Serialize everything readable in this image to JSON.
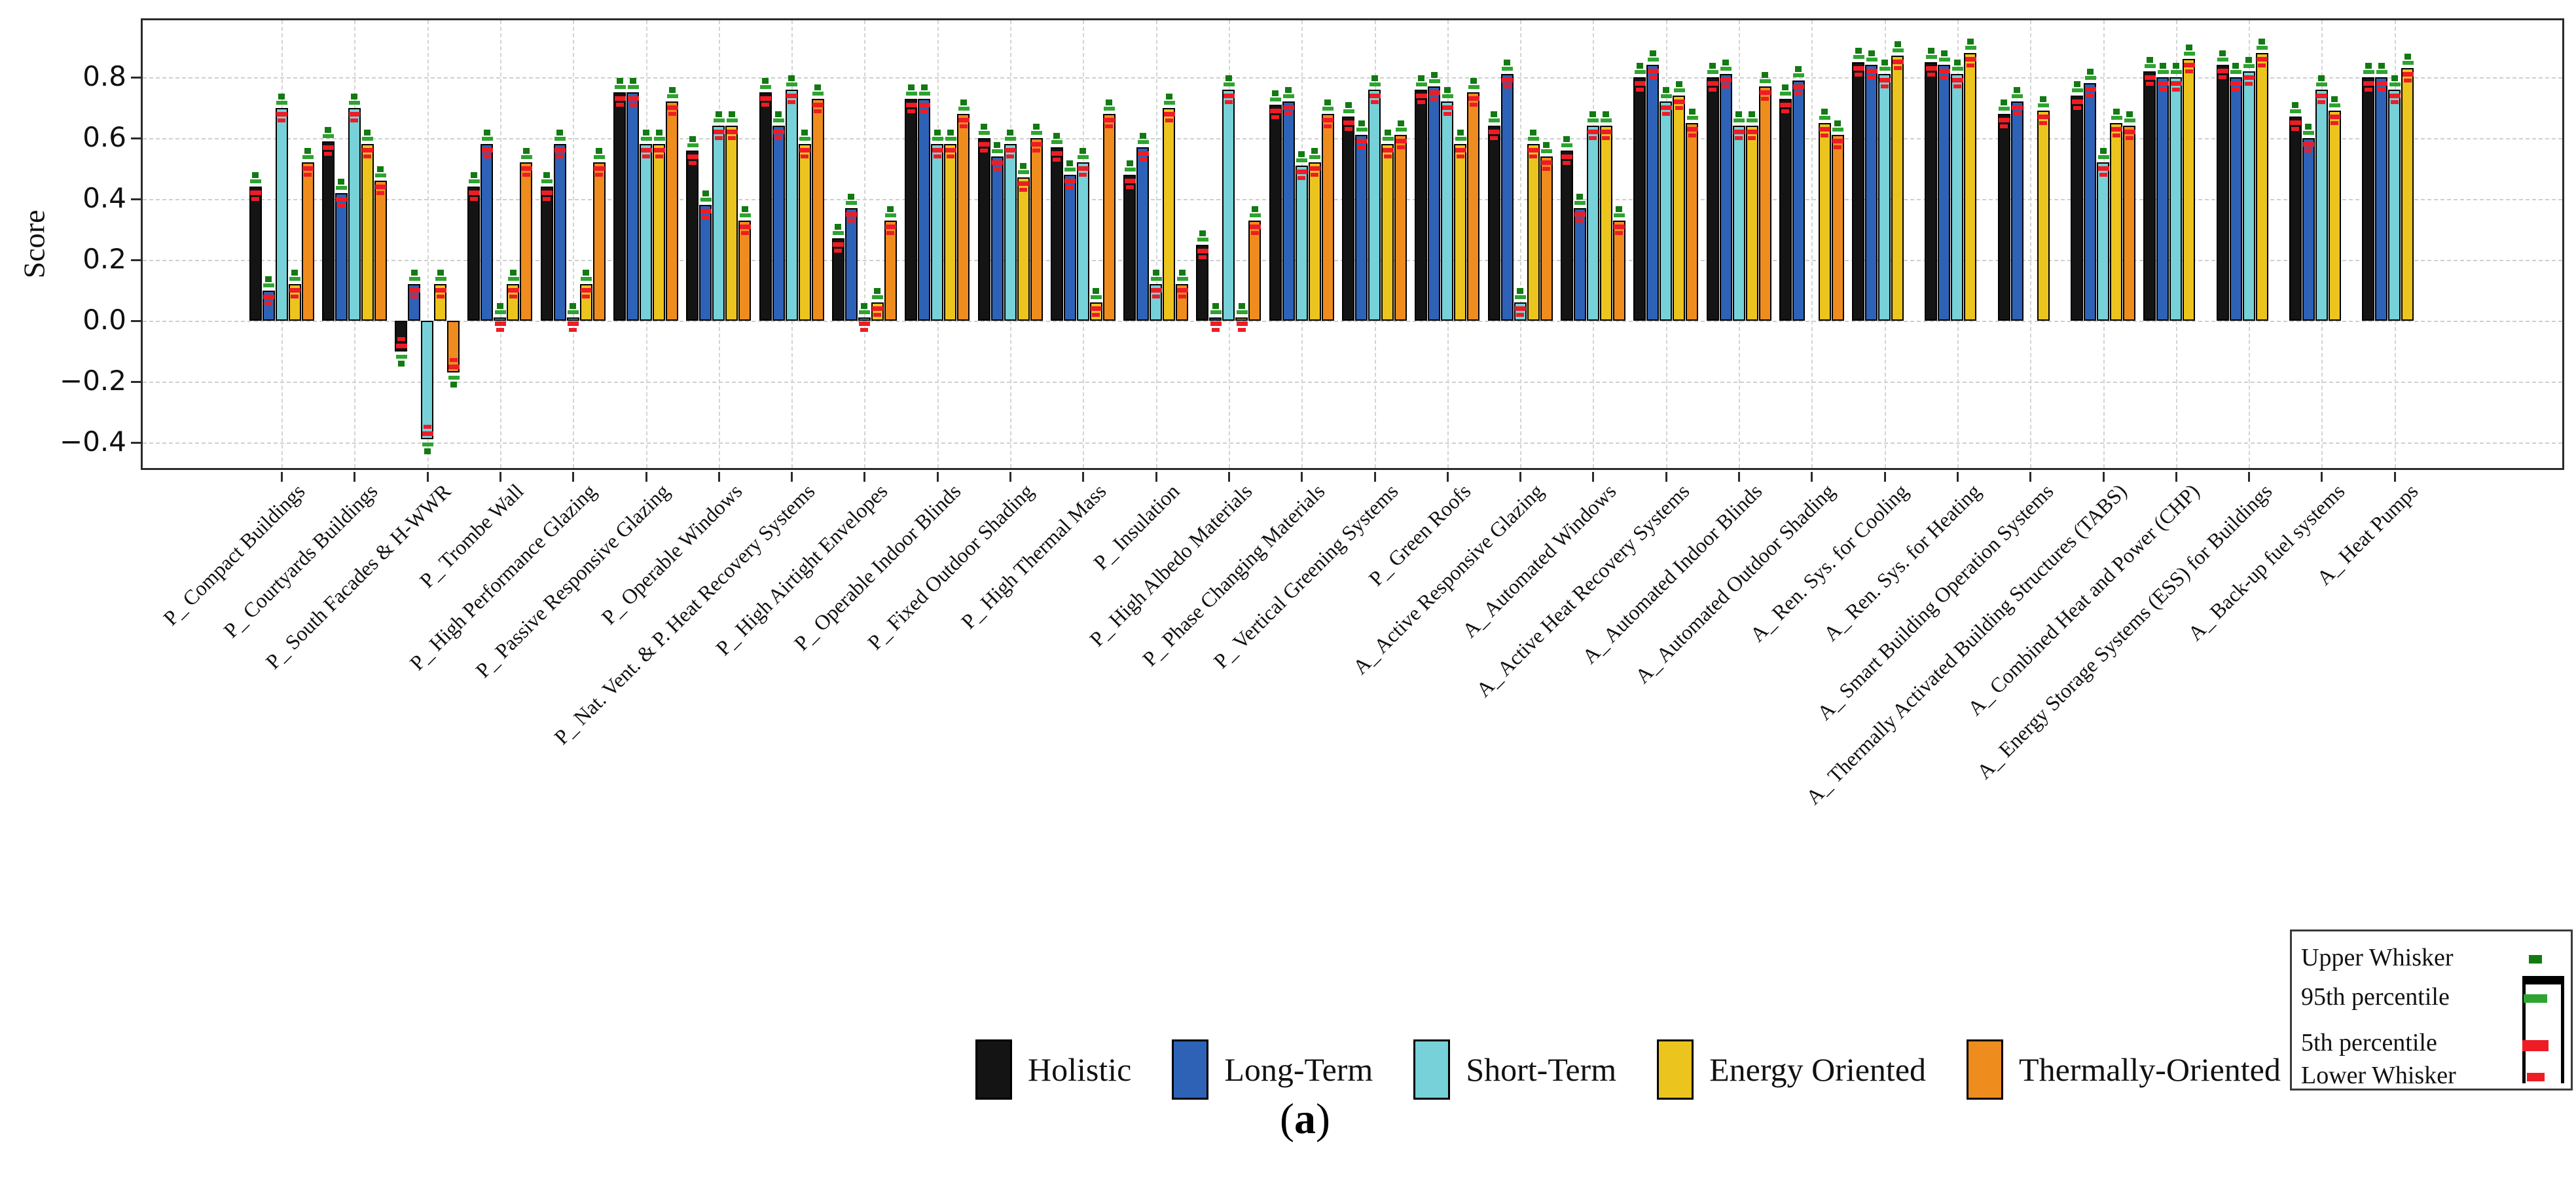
{
  "chart_data": {
    "type": "bar",
    "title": "",
    "ylabel": "Score",
    "caption": "(a)",
    "ylim": [
      -0.5,
      0.98
    ],
    "yticks": [
      0.8,
      0.6,
      0.4,
      0.2,
      0.0,
      -0.2,
      -0.4
    ],
    "grid": true,
    "legend_position": "bottom-center",
    "categories": [
      "P_ Compact Buildings",
      "P_ Courtyards Buildings",
      "P_ South Facades & H-WWR",
      "P_ Trombe Wall",
      "P_ High Performance Glazing",
      "P_ Passive Responsive Glazing",
      "P_ Operable Windows",
      "P_ Nat. Vent. & P. Heat Recovery Systems",
      "P_ High Airtight Envelopes",
      "P_ Operable Indoor Blinds",
      "P_ Fixed Outdoor Shading",
      "P_ High Thermal Mass",
      "P_ Insulation",
      "P_ High Albedo Materials",
      "P_ Phase Changing Materials",
      "P_ Vertical Greening Systems",
      "P_ Green Roofs",
      "A_ Active Responsive Glazing",
      "A_ Automated Windows",
      "A_ Active Heat Recovery Systems",
      "A_ Automated Indoor Blinds",
      "A_ Automated Outdoor Shading",
      "A_ Ren. Sys. for Cooling",
      "A_ Ren. Sys. for Heating",
      "A_ Smart Building Operation Systems",
      "A_ Thermally Activated Building Structures (TABS)",
      "A_ Combined Heat and Power (CHP)",
      "A_ Energy Storage Systems (ESS) for Buildings",
      "A_ Back-up fuel systems",
      "A_ Heat Pumps"
    ],
    "series": [
      {
        "name": "Holistic",
        "color": "#141414",
        "values": [
          0.44,
          0.59,
          -0.1,
          0.44,
          0.44,
          0.75,
          0.56,
          0.75,
          0.27,
          0.73,
          0.6,
          0.57,
          0.48,
          0.25,
          0.71,
          0.67,
          0.76,
          0.64,
          0.56,
          0.8,
          0.8,
          0.73,
          0.85,
          0.85,
          0.68,
          0.74,
          0.82,
          0.84,
          0.67,
          0.8
        ]
      },
      {
        "name": "Long-Term",
        "color": "#2e62b6",
        "values": [
          0.1,
          0.42,
          0.12,
          0.58,
          0.58,
          0.75,
          0.38,
          0.64,
          0.37,
          0.73,
          0.54,
          0.48,
          0.57,
          0.01,
          0.72,
          0.61,
          0.77,
          0.81,
          0.37,
          0.84,
          0.81,
          0.79,
          0.84,
          0.84,
          0.72,
          0.78,
          0.8,
          0.8,
          0.6,
          0.8
        ]
      },
      {
        "name": "Short-Term",
        "color": "#76d1d8",
        "values": [
          0.7,
          0.7,
          -0.39,
          0.01,
          0.01,
          0.58,
          0.64,
          0.76,
          0.01,
          0.58,
          0.58,
          0.52,
          0.12,
          0.76,
          0.51,
          0.76,
          0.72,
          0.06,
          0.64,
          0.72,
          0.64,
          0,
          0.81,
          0.81,
          0,
          0.52,
          0.8,
          0.82,
          0.76,
          0.76
        ]
      },
      {
        "name": "Energy Oriented",
        "color": "#ecc41e",
        "values": [
          0.12,
          0.58,
          0.12,
          0.12,
          0.12,
          0.58,
          0.64,
          0.58,
          0.06,
          0.58,
          0.47,
          0.06,
          0.7,
          0.01,
          0.52,
          0.58,
          0.58,
          0.58,
          0.64,
          0.74,
          0.64,
          0.65,
          0.87,
          0.88,
          0.69,
          0.65,
          0.86,
          0.88,
          0.69,
          0.83
        ]
      },
      {
        "name": "Thermally-Oriented",
        "color": "#ef8c1e",
        "values": [
          0.52,
          0.46,
          -0.17,
          0.52,
          0.52,
          0.72,
          0.33,
          0.73,
          0.33,
          0.68,
          0.6,
          0.68,
          0.12,
          0.33,
          0.68,
          0.61,
          0.75,
          0.54,
          0.33,
          0.65,
          0.77,
          0.61,
          0,
          0,
          0,
          0.64,
          0,
          0,
          0,
          0
        ]
      }
    ],
    "whisker_legend": {
      "entries": [
        {
          "label": "Upper Whisker",
          "marker": "upper-whisker-icon",
          "color": "#127a12"
        },
        {
          "label": "95th percentile",
          "marker": "p95-icon",
          "color": "#2fa331"
        },
        {
          "label": "5th percentile",
          "marker": "p5-icon",
          "color": "#ee1c25"
        },
        {
          "label": "Lower Whisker",
          "marker": "lower-whisker-icon",
          "color": "#ee1c25"
        }
      ]
    }
  }
}
